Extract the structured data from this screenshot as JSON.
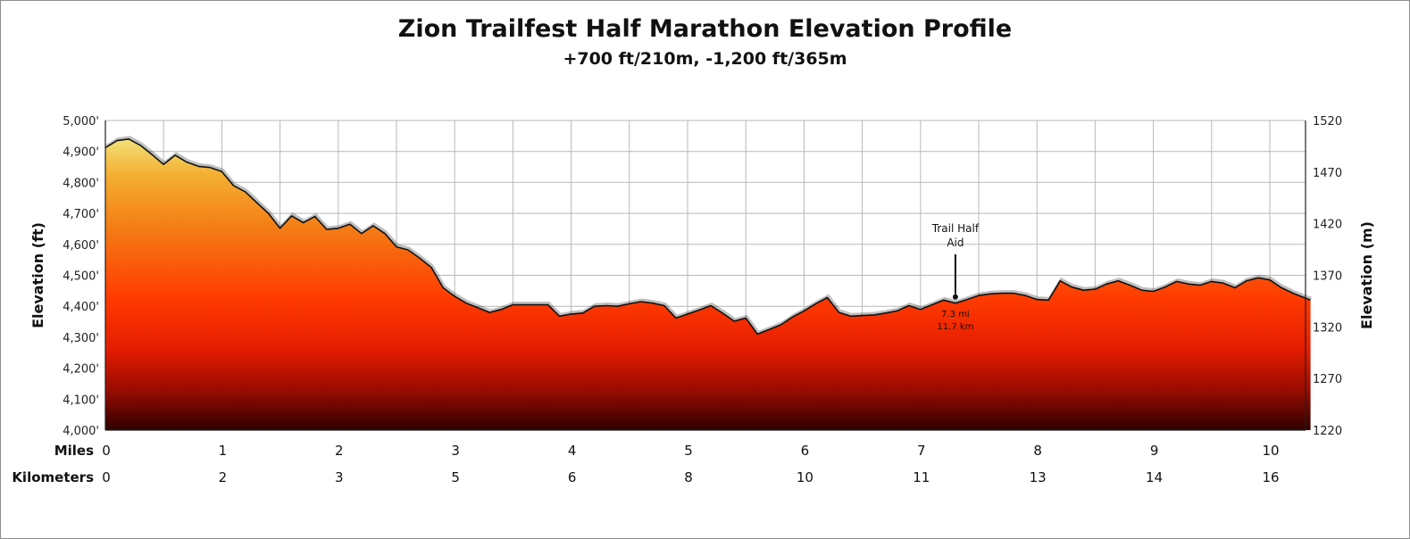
{
  "chart_data": {
    "type": "area",
    "title": "Zion Trailfest Half Marathon Elevation Profile",
    "subtitle": "+700 ft/210m, -1,200 ft/365m",
    "ylabel": "Elevation (ft)",
    "ylabel_right": "Elevation (m)",
    "ylim": [
      4000,
      5000
    ],
    "ylim_right": [
      1220,
      1520
    ],
    "xlim": [
      0,
      10.35
    ],
    "yticks": [
      "4,000'",
      "4,100'",
      "4,200'",
      "4,300'",
      "4,400'",
      "4,500'",
      "4,600'",
      "4,700'",
      "4,800'",
      "4,900'",
      "5,000'"
    ],
    "yticks_right": [
      "1220",
      "1270",
      "1320",
      "1370",
      "1420",
      "1470",
      "1520"
    ],
    "x_rows": [
      {
        "label": "Miles",
        "ticks": [
          "0",
          "1",
          "2",
          "3",
          "4",
          "5",
          "6",
          "7",
          "8",
          "9",
          "10"
        ]
      },
      {
        "label": "Kilometers",
        "ticks": [
          "0",
          "2",
          "3",
          "5",
          "6",
          "8",
          "10",
          "11",
          "13",
          "14",
          "16"
        ]
      }
    ],
    "grid": true,
    "series": [
      {
        "x": [
          0,
          0.1,
          0.2,
          0.3,
          0.4,
          0.5,
          0.6,
          0.7,
          0.8,
          0.9,
          1.0,
          1.1,
          1.2,
          1.3,
          1.4,
          1.5,
          1.6,
          1.7,
          1.8,
          1.9,
          2.0,
          2.1,
          2.2,
          2.3,
          2.4,
          2.5,
          2.6,
          2.7,
          2.8,
          2.9,
          3.0,
          3.1,
          3.2,
          3.3,
          3.4,
          3.5,
          3.6,
          3.7,
          3.8,
          3.9,
          4.0,
          4.1,
          4.2,
          4.3,
          4.4,
          4.5,
          4.6,
          4.7,
          4.8,
          4.9,
          5.0,
          5.1,
          5.2,
          5.3,
          5.4,
          5.5,
          5.6,
          5.7,
          5.8,
          5.9,
          6.0,
          6.1,
          6.2,
          6.3,
          6.4,
          6.5,
          6.6,
          6.7,
          6.8,
          6.9,
          7.0,
          7.1,
          7.2,
          7.3,
          7.4,
          7.5,
          7.6,
          7.7,
          7.8,
          7.9,
          8.0,
          8.1,
          8.2,
          8.3,
          8.4,
          8.5,
          8.6,
          8.7,
          8.8,
          8.9,
          9.0,
          9.1,
          9.2,
          9.3,
          9.4,
          9.5,
          9.6,
          9.7,
          9.8,
          9.9,
          10.0,
          10.1,
          10.2,
          10.35
        ],
        "y": [
          4912,
          4935,
          4940,
          4920,
          4890,
          4858,
          4888,
          4865,
          4852,
          4848,
          4835,
          4790,
          4770,
          4735,
          4700,
          4652,
          4692,
          4670,
          4690,
          4648,
          4652,
          4665,
          4635,
          4660,
          4635,
          4592,
          4582,
          4555,
          4525,
          4460,
          4432,
          4410,
          4395,
          4380,
          4390,
          4405,
          4405,
          4405,
          4405,
          4368,
          4375,
          4378,
          4400,
          4402,
          4400,
          4408,
          4415,
          4410,
          4402,
          4362,
          4375,
          4388,
          4402,
          4378,
          4352,
          4362,
          4310,
          4325,
          4340,
          4365,
          4385,
          4408,
          4428,
          4380,
          4368,
          4370,
          4372,
          4378,
          4385,
          4402,
          4390,
          4405,
          4420,
          4410,
          4422,
          4435,
          4440,
          4442,
          4442,
          4435,
          4422,
          4420,
          4482,
          4462,
          4452,
          4455,
          4472,
          4482,
          4468,
          4452,
          4448,
          4462,
          4480,
          4472,
          4468,
          4480,
          4475,
          4460,
          4482,
          4492,
          4485,
          4460,
          4442,
          4420
        ]
      }
    ],
    "annotation": {
      "title_line1": "Trail Half",
      "title_line2": "Aid",
      "x": 7.3,
      "y": 4430,
      "label_mi": "7.3 mi",
      "label_km": "11.7 km"
    }
  }
}
